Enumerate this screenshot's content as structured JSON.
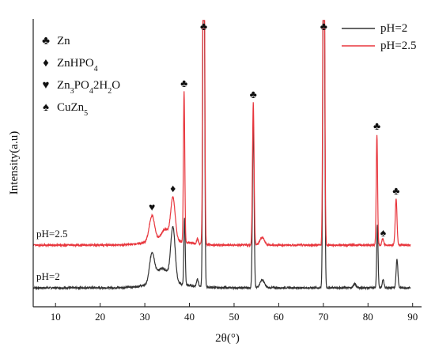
{
  "chart_data": {
    "type": "line",
    "xlabel": "2θ(°)",
    "ylabel": "Intensity(a.u)",
    "xlim": [
      5,
      92
    ],
    "x_ticks": [
      "10",
      "20",
      "30",
      "40",
      "50",
      "60",
      "70",
      "80",
      "90"
    ],
    "y_ticks": [],
    "legend": {
      "position": "top-right",
      "entries": [
        "pH=2",
        "pH=2.5"
      ]
    },
    "series": [
      {
        "name": "pH=2",
        "color": "#333333",
        "inline_label": "pH=2",
        "baseline": 24,
        "x_range": [
          5,
          89.5
        ],
        "peaks": [
          {
            "x": 31.6,
            "h": 38,
            "w": 0.55
          },
          {
            "x": 33.0,
            "h": 12,
            "w": 0.8
          },
          {
            "x": 34.5,
            "h": 15,
            "w": 0.9
          },
          {
            "x": 36.3,
            "h": 70,
            "w": 0.5
          },
          {
            "x": 38.9,
            "h": 84,
            "w": 0.15
          },
          {
            "x": 41.8,
            "h": 10,
            "w": 0.2
          },
          {
            "x": 43.2,
            "h": 600,
            "w": 0.18
          },
          {
            "x": 54.3,
            "h": 210,
            "w": 0.18
          },
          {
            "x": 56.3,
            "h": 10,
            "w": 0.5
          },
          {
            "x": 70.1,
            "h": 600,
            "w": 0.18
          },
          {
            "x": 77.0,
            "h": 5,
            "w": 0.3
          },
          {
            "x": 82.1,
            "h": 80,
            "w": 0.15
          },
          {
            "x": 83.4,
            "h": 10,
            "w": 0.2
          },
          {
            "x": 86.5,
            "h": 36,
            "w": 0.2
          }
        ]
      },
      {
        "name": "pH=2.5",
        "color": "#e8363d",
        "inline_label": "pH=2.5",
        "baseline": 78,
        "x_range": [
          5,
          89.5
        ],
        "peaks": [
          {
            "x": 31.6,
            "h": 33,
            "w": 0.6
          },
          {
            "x": 34.5,
            "h": 14,
            "w": 0.8
          },
          {
            "x": 36.3,
            "h": 54,
            "w": 0.5
          },
          {
            "x": 38.8,
            "h": 190,
            "w": 0.15
          },
          {
            "x": 41.8,
            "h": 6,
            "w": 0.2
          },
          {
            "x": 43.2,
            "h": 600,
            "w": 0.18
          },
          {
            "x": 54.3,
            "h": 180,
            "w": 0.18
          },
          {
            "x": 56.3,
            "h": 10,
            "w": 0.5
          },
          {
            "x": 70.1,
            "h": 600,
            "w": 0.18
          },
          {
            "x": 82.0,
            "h": 140,
            "w": 0.15
          },
          {
            "x": 83.3,
            "h": 8,
            "w": 0.2
          },
          {
            "x": 86.3,
            "h": 58,
            "w": 0.2
          }
        ]
      }
    ],
    "phase_legend": [
      {
        "symbol": "♣",
        "formula": "Zn",
        "subscripts": []
      },
      {
        "symbol": "♦",
        "formula": "ZnHPO4",
        "subscripts": [
          "4"
        ]
      },
      {
        "symbol": "♥",
        "formula": "Zn3PO42H2O",
        "subscripts": [
          "3",
          "4",
          "2"
        ]
      },
      {
        "symbol": "♠",
        "formula": "CuZn5",
        "subscripts": [
          "5"
        ]
      }
    ],
    "peak_markers": [
      {
        "symbol": "♣",
        "x": 38.8
      },
      {
        "symbol": "♣",
        "x": 43.2
      },
      {
        "symbol": "♣",
        "x": 54.3
      },
      {
        "symbol": "♣",
        "x": 70.1
      },
      {
        "symbol": "♣",
        "x": 82.0
      },
      {
        "symbol": "♣",
        "x": 86.3
      },
      {
        "symbol": "♦",
        "x": 36.3
      },
      {
        "symbol": "♥",
        "x": 31.6
      },
      {
        "symbol": "♠",
        "x": 83.4
      }
    ]
  }
}
